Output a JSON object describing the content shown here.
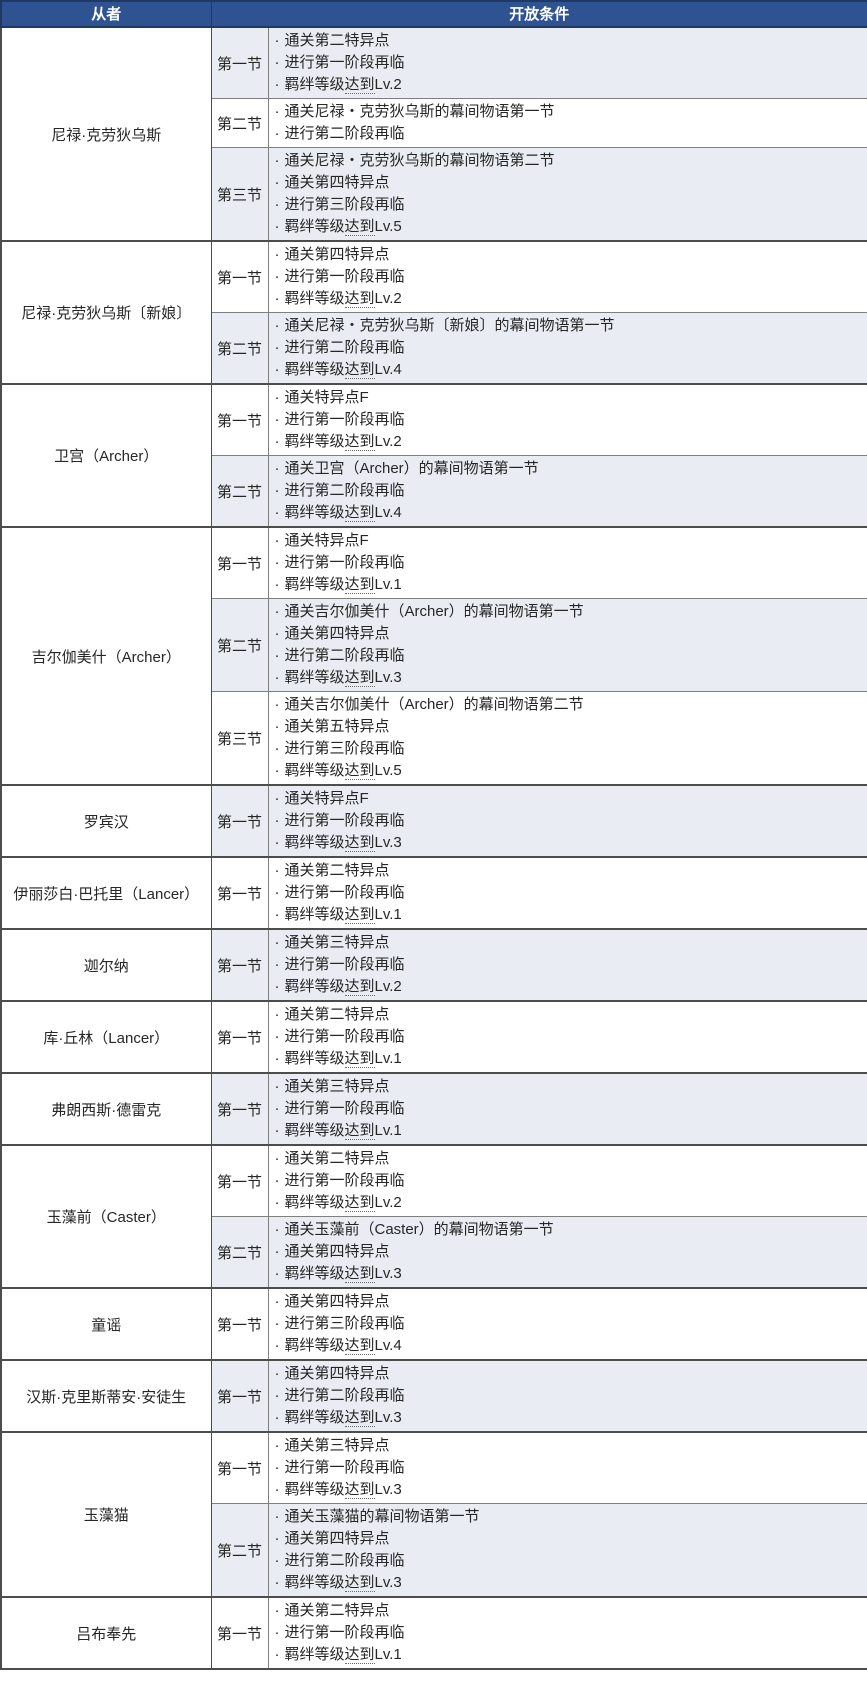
{
  "colors": {
    "header_bg": "#2f5391",
    "header_border": "#1f3864",
    "stripe": "#e9edf3",
    "border_dark": "#4d4d4d",
    "border_mid": "#7f7f7f",
    "text": "#262626"
  },
  "table": {
    "headers": [
      "从者",
      "开放条件"
    ],
    "bullet": "·",
    "underline_term": "达到",
    "servants": [
      {
        "name": "尼禄·克劳狄乌斯",
        "sections": [
          {
            "chapter": "第一节",
            "conditions": [
              "通关第二特异点",
              "进行第一阶段再临",
              "羁绊等级达到Lv.2"
            ]
          },
          {
            "chapter": "第二节",
            "conditions": [
              "通关尼禄・克劳狄乌斯的幕间物语第一节",
              "进行第二阶段再临"
            ]
          },
          {
            "chapter": "第三节",
            "conditions": [
              "通关尼禄・克劳狄乌斯的幕间物语第二节",
              "通关第四特异点",
              "进行第三阶段再临",
              "羁绊等级达到Lv.5"
            ]
          }
        ]
      },
      {
        "name": "尼禄·克劳狄乌斯〔新娘〕",
        "sections": [
          {
            "chapter": "第一节",
            "conditions": [
              "通关第四特异点",
              "进行第一阶段再临",
              "羁绊等级达到Lv.2"
            ]
          },
          {
            "chapter": "第二节",
            "conditions": [
              "通关尼禄・克劳狄乌斯〔新娘〕的幕间物语第一节",
              "进行第二阶段再临",
              "羁绊等级达到Lv.4"
            ]
          }
        ]
      },
      {
        "name": "卫宫（Archer）",
        "sections": [
          {
            "chapter": "第一节",
            "conditions": [
              "通关特异点F",
              "进行第一阶段再临",
              "羁绊等级达到Lv.2"
            ]
          },
          {
            "chapter": "第二节",
            "conditions": [
              "通关卫宫（Archer）的幕间物语第一节",
              "进行第二阶段再临",
              "羁绊等级达到Lv.4"
            ]
          }
        ]
      },
      {
        "name": "吉尔伽美什（Archer）",
        "sections": [
          {
            "chapter": "第一节",
            "conditions": [
              "通关特异点F",
              "进行第一阶段再临",
              "羁绊等级达到Lv.1"
            ]
          },
          {
            "chapter": "第二节",
            "conditions": [
              "通关吉尔伽美什（Archer）的幕间物语第一节",
              "通关第四特异点",
              "进行第二阶段再临",
              "羁绊等级达到Lv.3"
            ]
          },
          {
            "chapter": "第三节",
            "conditions": [
              "通关吉尔伽美什（Archer）的幕间物语第二节",
              "通关第五特异点",
              "进行第三阶段再临",
              "羁绊等级达到Lv.5"
            ]
          }
        ]
      },
      {
        "name": "罗宾汉",
        "sections": [
          {
            "chapter": "第一节",
            "conditions": [
              "通关特异点F",
              "进行第一阶段再临",
              "羁绊等级达到Lv.3"
            ]
          }
        ]
      },
      {
        "name": "伊丽莎白·巴托里（Lancer）",
        "sections": [
          {
            "chapter": "第一节",
            "conditions": [
              "通关第二特异点",
              "进行第一阶段再临",
              "羁绊等级达到Lv.1"
            ]
          }
        ]
      },
      {
        "name": "迦尔纳",
        "sections": [
          {
            "chapter": "第一节",
            "conditions": [
              "通关第三特异点",
              "进行第一阶段再临",
              "羁绊等级达到Lv.2"
            ]
          }
        ]
      },
      {
        "name": "库·丘林（Lancer）",
        "sections": [
          {
            "chapter": "第一节",
            "conditions": [
              "通关第二特异点",
              "进行第一阶段再临",
              "羁绊等级达到Lv.1"
            ]
          }
        ]
      },
      {
        "name": "弗朗西斯·德雷克",
        "sections": [
          {
            "chapter": "第一节",
            "conditions": [
              "通关第三特异点",
              "进行第一阶段再临",
              "羁绊等级达到Lv.1"
            ]
          }
        ]
      },
      {
        "name": "玉藻前（Caster）",
        "sections": [
          {
            "chapter": "第一节",
            "conditions": [
              "通关第二特异点",
              "进行第一阶段再临",
              "羁绊等级达到Lv.2"
            ]
          },
          {
            "chapter": "第二节",
            "conditions": [
              "通关玉藻前（Caster）的幕间物语第一节",
              "通关第四特异点",
              "羁绊等级达到Lv.3"
            ]
          }
        ]
      },
      {
        "name": "童谣",
        "sections": [
          {
            "chapter": "第一节",
            "conditions": [
              "通关第四特异点",
              "进行第三阶段再临",
              "羁绊等级达到Lv.4"
            ]
          }
        ]
      },
      {
        "name": "汉斯·克里斯蒂安·安徒生",
        "sections": [
          {
            "chapter": "第一节",
            "conditions": [
              "通关第四特异点",
              "进行第二阶段再临",
              "羁绊等级达到Lv.3"
            ]
          }
        ]
      },
      {
        "name": "玉藻猫",
        "sections": [
          {
            "chapter": "第一节",
            "conditions": [
              "通关第三特异点",
              "进行第一阶段再临",
              "羁绊等级达到Lv.3"
            ]
          },
          {
            "chapter": "第二节",
            "conditions": [
              "通关玉藻猫的幕间物语第一节",
              "通关第四特异点",
              "进行第二阶段再临",
              "羁绊等级达到Lv.3"
            ]
          }
        ]
      },
      {
        "name": "吕布奉先",
        "sections": [
          {
            "chapter": "第一节",
            "conditions": [
              "通关第二特异点",
              "进行第一阶段再临",
              "羁绊等级达到Lv.1"
            ]
          }
        ]
      }
    ]
  }
}
